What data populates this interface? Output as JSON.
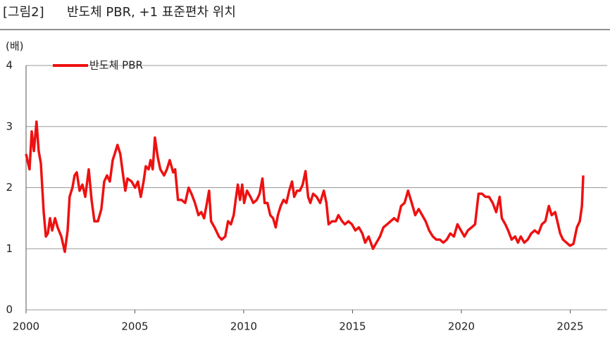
{
  "chart_data": {
    "type": "line",
    "figure_label": "[그림2]",
    "title": "반도체 PBR, +1 표준편차 위치",
    "y_label": "(배)",
    "xlim": [
      2000,
      2026.7
    ],
    "xticks": [
      2000,
      2005,
      2010,
      2015,
      2020,
      2025
    ],
    "ylim": [
      0,
      4
    ],
    "yticks": [
      0,
      1,
      2,
      3,
      4
    ],
    "grid": true,
    "legend": "top-left",
    "x": [
      2000.0,
      2000.16,
      2000.26,
      2000.36,
      2000.48,
      2000.58,
      2000.68,
      2000.81,
      2000.91,
      2001.0,
      2001.1,
      2001.2,
      2001.33,
      2001.45,
      2001.62,
      2001.78,
      2001.91,
      2002.0,
      2002.13,
      2002.23,
      2002.33,
      2002.46,
      2002.59,
      2002.72,
      2002.88,
      2003.01,
      2003.14,
      2003.3,
      2003.46,
      2003.59,
      2003.72,
      2003.85,
      2003.98,
      2004.07,
      2004.2,
      2004.33,
      2004.46,
      2004.56,
      2004.66,
      2004.85,
      2005.01,
      2005.14,
      2005.27,
      2005.4,
      2005.5,
      2005.63,
      2005.72,
      2005.82,
      2005.92,
      2006.05,
      2006.17,
      2006.34,
      2006.47,
      2006.6,
      2006.76,
      2006.85,
      2006.98,
      2007.14,
      2007.31,
      2007.47,
      2007.6,
      2007.76,
      2007.92,
      2008.05,
      2008.18,
      2008.31,
      2008.41,
      2008.5,
      2008.66,
      2008.86,
      2008.99,
      2009.15,
      2009.28,
      2009.41,
      2009.54,
      2009.63,
      2009.73,
      2009.83,
      2009.93,
      2010.02,
      2010.15,
      2010.31,
      2010.44,
      2010.6,
      2010.73,
      2010.86,
      2010.96,
      2011.09,
      2011.22,
      2011.35,
      2011.47,
      2011.57,
      2011.7,
      2011.83,
      2011.96,
      2012.09,
      2012.22,
      2012.32,
      2012.45,
      2012.58,
      2012.71,
      2012.84,
      2012.96,
      2013.06,
      2013.19,
      2013.35,
      2013.51,
      2013.68,
      2013.8,
      2013.9,
      2014.06,
      2014.23,
      2014.35,
      2014.52,
      2014.65,
      2014.81,
      2014.97,
      2015.13,
      2015.29,
      2015.45,
      2015.58,
      2015.74,
      2015.94,
      2016.1,
      2016.26,
      2016.42,
      2016.59,
      2016.75,
      2016.91,
      2017.07,
      2017.23,
      2017.39,
      2017.55,
      2017.72,
      2017.88,
      2018.04,
      2018.2,
      2018.36,
      2018.52,
      2018.69,
      2018.85,
      2019.01,
      2019.17,
      2019.33,
      2019.49,
      2019.66,
      2019.82,
      2019.98,
      2020.14,
      2020.3,
      2020.47,
      2020.63,
      2020.79,
      2020.95,
      2021.11,
      2021.27,
      2021.44,
      2021.6,
      2021.76,
      2021.86,
      2022.02,
      2022.15,
      2022.31,
      2022.47,
      2022.6,
      2022.73,
      2022.89,
      2023.05,
      2023.21,
      2023.37,
      2023.54,
      2023.7,
      2023.86,
      2024.02,
      2024.15,
      2024.31,
      2024.41,
      2024.54,
      2024.67,
      2024.83,
      2024.99,
      2025.15,
      2025.31,
      2025.44,
      2025.54,
      2025.6
    ],
    "series": [
      {
        "name": "반도체 PBR",
        "color": "#ee1111",
        "values": [
          2.55,
          2.3,
          2.92,
          2.6,
          3.08,
          2.6,
          2.4,
          1.6,
          1.2,
          1.25,
          1.5,
          1.3,
          1.5,
          1.35,
          1.2,
          0.95,
          1.3,
          1.85,
          2.0,
          2.2,
          2.25,
          1.95,
          2.05,
          1.85,
          2.3,
          1.8,
          1.45,
          1.45,
          1.65,
          2.1,
          2.2,
          2.1,
          2.45,
          2.55,
          2.7,
          2.55,
          2.2,
          1.95,
          2.15,
          2.1,
          2.0,
          2.1,
          1.85,
          2.1,
          2.35,
          2.3,
          2.45,
          2.3,
          2.82,
          2.5,
          2.3,
          2.2,
          2.3,
          2.45,
          2.25,
          2.3,
          1.8,
          1.8,
          1.75,
          2.0,
          1.9,
          1.75,
          1.55,
          1.6,
          1.5,
          1.75,
          1.95,
          1.45,
          1.35,
          1.2,
          1.15,
          1.2,
          1.45,
          1.4,
          1.55,
          1.8,
          2.05,
          1.8,
          2.05,
          1.75,
          1.95,
          1.85,
          1.75,
          1.8,
          1.9,
          2.15,
          1.75,
          1.75,
          1.55,
          1.5,
          1.35,
          1.55,
          1.7,
          1.8,
          1.75,
          1.95,
          2.1,
          1.85,
          1.95,
          1.95,
          2.05,
          2.27,
          1.85,
          1.75,
          1.9,
          1.85,
          1.75,
          1.95,
          1.75,
          1.4,
          1.45,
          1.45,
          1.55,
          1.45,
          1.4,
          1.45,
          1.4,
          1.3,
          1.35,
          1.25,
          1.1,
          1.2,
          1.0,
          1.1,
          1.2,
          1.35,
          1.4,
          1.45,
          1.5,
          1.45,
          1.7,
          1.75,
          1.95,
          1.75,
          1.55,
          1.65,
          1.55,
          1.45,
          1.3,
          1.2,
          1.15,
          1.15,
          1.1,
          1.15,
          1.25,
          1.2,
          1.4,
          1.3,
          1.2,
          1.3,
          1.35,
          1.4,
          1.9,
          1.9,
          1.85,
          1.85,
          1.75,
          1.6,
          1.85,
          1.5,
          1.4,
          1.3,
          1.15,
          1.2,
          1.1,
          1.2,
          1.1,
          1.15,
          1.25,
          1.3,
          1.25,
          1.4,
          1.45,
          1.7,
          1.55,
          1.6,
          1.45,
          1.25,
          1.15,
          1.1,
          1.05,
          1.08,
          1.35,
          1.45,
          1.7,
          2.2
        ]
      }
    ]
  }
}
